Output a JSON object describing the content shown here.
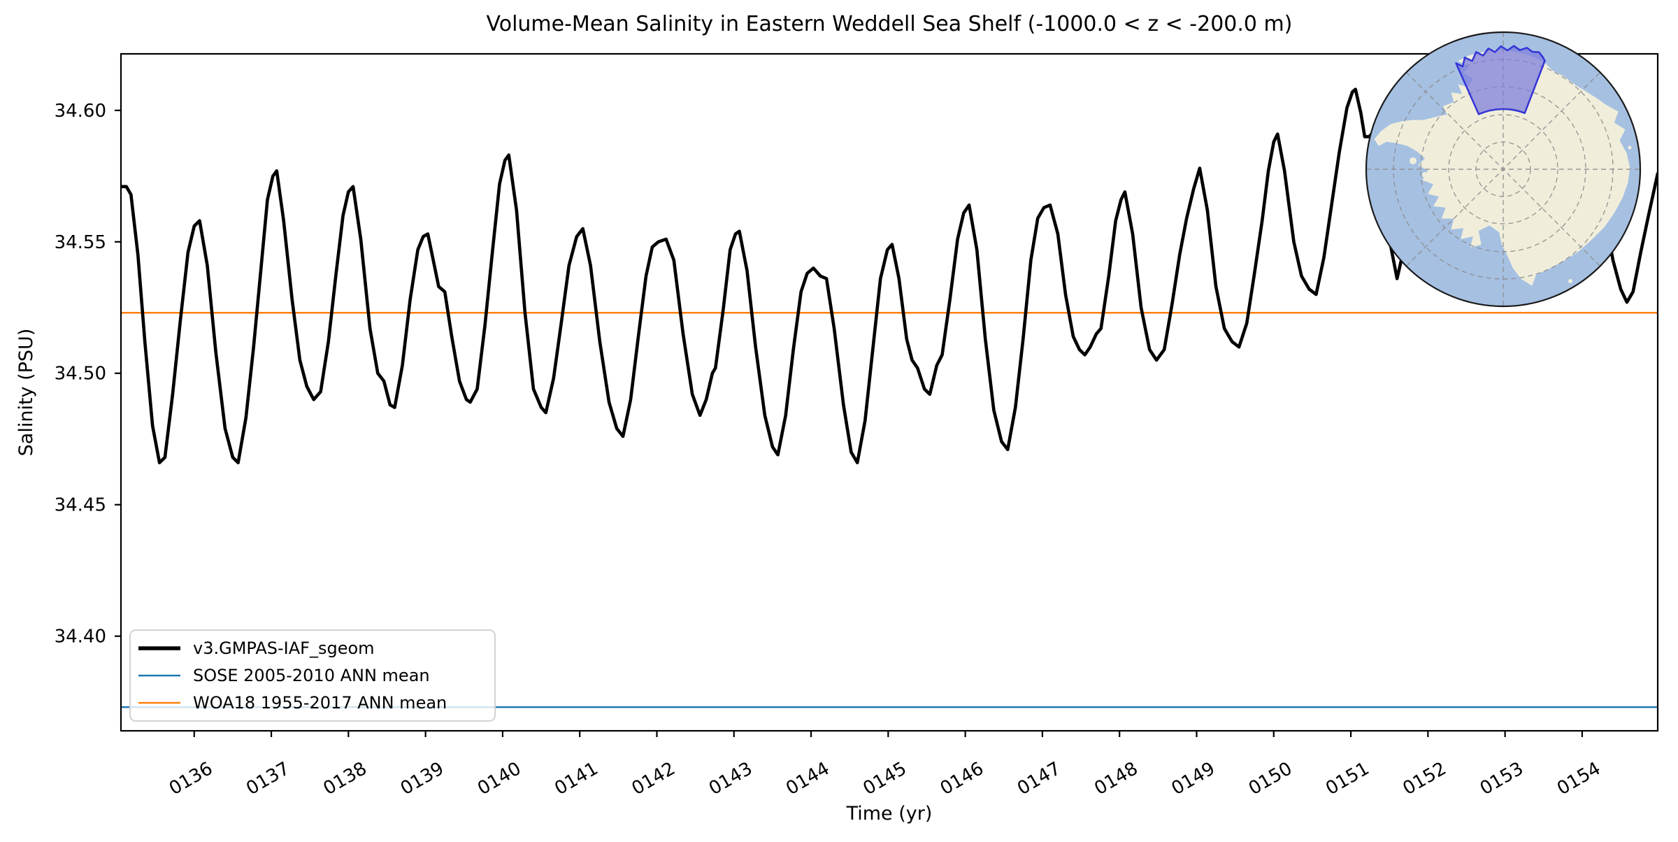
{
  "figure": {
    "title": "Volume-Mean Salinity in Eastern Weddell Sea Shelf (-1000.0 < z < -200.0 m)"
  },
  "chart_data": {
    "type": "line",
    "title": "Volume-Mean Salinity in Eastern Weddell Sea Shelf (-1000.0 < z < -200.0 m)",
    "xlabel": "Time (yr)",
    "ylabel": "Salinity (PSU)",
    "xlim": [
      135.05,
      154.98
    ],
    "ylim": [
      34.364,
      34.6215
    ],
    "grid": false,
    "xticks": {
      "values": [
        136,
        137,
        138,
        139,
        140,
        141,
        142,
        143,
        144,
        145,
        146,
        147,
        148,
        149,
        150,
        151,
        152,
        153,
        154
      ],
      "labels": [
        "0136",
        "0137",
        "0138",
        "0139",
        "0140",
        "0141",
        "0142",
        "0143",
        "0144",
        "0145",
        "0146",
        "0147",
        "0148",
        "0149",
        "0150",
        "0151",
        "0152",
        "0153",
        "0154"
      ],
      "rotation_deg": -30
    },
    "yticks": {
      "values": [
        34.4,
        34.45,
        34.5,
        34.55,
        34.6
      ],
      "labels": [
        "34.40",
        "34.45",
        "34.50",
        "34.55",
        "34.60"
      ]
    },
    "series": [
      {
        "name": "v3.GMPAS-IAF_sgeom",
        "type": "line",
        "color": "#000000",
        "linewidth": 4.6,
        "points": [
          [
            135.05,
            34.571
          ],
          [
            135.12,
            34.571
          ],
          [
            135.18,
            34.568
          ],
          [
            135.27,
            34.545
          ],
          [
            135.36,
            34.512
          ],
          [
            135.46,
            34.48
          ],
          [
            135.55,
            34.466
          ],
          [
            135.62,
            34.468
          ],
          [
            135.72,
            34.492
          ],
          [
            135.82,
            34.52
          ],
          [
            135.92,
            34.546
          ],
          [
            136.0,
            34.556
          ],
          [
            136.07,
            34.558
          ],
          [
            136.17,
            34.541
          ],
          [
            136.28,
            34.508
          ],
          [
            136.4,
            34.479
          ],
          [
            136.5,
            34.468
          ],
          [
            136.57,
            34.466
          ],
          [
            136.67,
            34.483
          ],
          [
            136.77,
            34.51
          ],
          [
            136.87,
            34.541
          ],
          [
            136.95,
            34.566
          ],
          [
            137.02,
            34.575
          ],
          [
            137.07,
            34.577
          ],
          [
            137.16,
            34.558
          ],
          [
            137.27,
            34.528
          ],
          [
            137.37,
            34.505
          ],
          [
            137.46,
            34.495
          ],
          [
            137.55,
            34.49
          ],
          [
            137.64,
            34.493
          ],
          [
            137.74,
            34.512
          ],
          [
            137.84,
            34.538
          ],
          [
            137.93,
            34.56
          ],
          [
            138.0,
            34.569
          ],
          [
            138.06,
            34.571
          ],
          [
            138.16,
            34.551
          ],
          [
            138.28,
            34.517
          ],
          [
            138.38,
            34.5
          ],
          [
            138.46,
            34.497
          ],
          [
            138.54,
            34.488
          ],
          [
            138.6,
            34.487
          ],
          [
            138.7,
            34.503
          ],
          [
            138.8,
            34.528
          ],
          [
            138.9,
            34.547
          ],
          [
            138.97,
            34.552
          ],
          [
            139.03,
            34.553
          ],
          [
            139.1,
            34.543
          ],
          [
            139.17,
            34.533
          ],
          [
            139.25,
            34.531
          ],
          [
            139.34,
            34.514
          ],
          [
            139.44,
            34.497
          ],
          [
            139.53,
            34.49
          ],
          [
            139.58,
            34.489
          ],
          [
            139.67,
            34.494
          ],
          [
            139.77,
            34.518
          ],
          [
            139.87,
            34.547
          ],
          [
            139.96,
            34.572
          ],
          [
            140.03,
            34.581
          ],
          [
            140.08,
            34.583
          ],
          [
            140.18,
            34.562
          ],
          [
            140.29,
            34.523
          ],
          [
            140.4,
            34.494
          ],
          [
            140.5,
            34.487
          ],
          [
            140.56,
            34.485
          ],
          [
            140.66,
            34.498
          ],
          [
            140.76,
            34.519
          ],
          [
            140.86,
            34.541
          ],
          [
            140.96,
            34.552
          ],
          [
            141.04,
            34.555
          ],
          [
            141.14,
            34.541
          ],
          [
            141.26,
            34.512
          ],
          [
            141.38,
            34.489
          ],
          [
            141.48,
            34.479
          ],
          [
            141.56,
            34.476
          ],
          [
            141.66,
            34.49
          ],
          [
            141.76,
            34.514
          ],
          [
            141.86,
            34.537
          ],
          [
            141.94,
            34.548
          ],
          [
            142.02,
            34.55
          ],
          [
            142.12,
            34.551
          ],
          [
            142.22,
            34.543
          ],
          [
            142.34,
            34.515
          ],
          [
            142.46,
            34.492
          ],
          [
            142.56,
            34.484
          ],
          [
            142.64,
            34.49
          ],
          [
            142.72,
            34.5
          ],
          [
            142.76,
            34.502
          ],
          [
            142.86,
            34.524
          ],
          [
            142.95,
            34.547
          ],
          [
            143.02,
            34.553
          ],
          [
            143.07,
            34.554
          ],
          [
            143.17,
            34.539
          ],
          [
            143.28,
            34.51
          ],
          [
            143.4,
            34.484
          ],
          [
            143.5,
            34.472
          ],
          [
            143.57,
            34.469
          ],
          [
            143.67,
            34.484
          ],
          [
            143.77,
            34.509
          ],
          [
            143.87,
            34.531
          ],
          [
            143.95,
            34.538
          ],
          [
            144.03,
            34.54
          ],
          [
            144.12,
            34.537
          ],
          [
            144.2,
            34.536
          ],
          [
            144.3,
            34.517
          ],
          [
            144.42,
            34.488
          ],
          [
            144.52,
            34.47
          ],
          [
            144.6,
            34.466
          ],
          [
            144.7,
            34.482
          ],
          [
            144.8,
            34.509
          ],
          [
            144.9,
            34.536
          ],
          [
            144.99,
            34.547
          ],
          [
            145.05,
            34.549
          ],
          [
            145.14,
            34.536
          ],
          [
            145.24,
            34.513
          ],
          [
            145.31,
            34.505
          ],
          [
            145.38,
            34.502
          ],
          [
            145.47,
            34.494
          ],
          [
            145.54,
            34.492
          ],
          [
            145.63,
            34.503
          ],
          [
            145.7,
            34.507
          ],
          [
            145.8,
            34.528
          ],
          [
            145.9,
            34.551
          ],
          [
            145.98,
            34.561
          ],
          [
            146.05,
            34.564
          ],
          [
            146.15,
            34.547
          ],
          [
            146.26,
            34.513
          ],
          [
            146.37,
            34.486
          ],
          [
            146.47,
            34.474
          ],
          [
            146.55,
            34.471
          ],
          [
            146.65,
            34.487
          ],
          [
            146.75,
            34.513
          ],
          [
            146.85,
            34.543
          ],
          [
            146.94,
            34.559
          ],
          [
            147.02,
            34.563
          ],
          [
            147.1,
            34.564
          ],
          [
            147.2,
            34.553
          ],
          [
            147.3,
            34.53
          ],
          [
            147.4,
            34.514
          ],
          [
            147.48,
            34.509
          ],
          [
            147.55,
            34.507
          ],
          [
            147.62,
            34.51
          ],
          [
            147.7,
            34.515
          ],
          [
            147.76,
            34.517
          ],
          [
            147.86,
            34.537
          ],
          [
            147.95,
            34.558
          ],
          [
            148.02,
            34.566
          ],
          [
            148.07,
            34.569
          ],
          [
            148.17,
            34.553
          ],
          [
            148.28,
            34.525
          ],
          [
            148.39,
            34.509
          ],
          [
            148.48,
            34.505
          ],
          [
            148.58,
            34.509
          ],
          [
            148.68,
            34.526
          ],
          [
            148.78,
            34.545
          ],
          [
            148.87,
            34.559
          ],
          [
            148.96,
            34.57
          ],
          [
            149.04,
            34.578
          ],
          [
            149.14,
            34.562
          ],
          [
            149.25,
            34.533
          ],
          [
            149.36,
            34.517
          ],
          [
            149.46,
            34.512
          ],
          [
            149.55,
            34.51
          ],
          [
            149.65,
            34.519
          ],
          [
            149.75,
            34.538
          ],
          [
            149.85,
            34.558
          ],
          [
            149.93,
            34.577
          ],
          [
            150.0,
            34.588
          ],
          [
            150.05,
            34.591
          ],
          [
            150.14,
            34.577
          ],
          [
            150.26,
            34.55
          ],
          [
            150.36,
            34.537
          ],
          [
            150.46,
            34.532
          ],
          [
            150.55,
            34.53
          ],
          [
            150.65,
            34.544
          ],
          [
            150.75,
            34.564
          ],
          [
            150.85,
            34.584
          ],
          [
            150.95,
            34.601
          ],
          [
            151.02,
            34.607
          ],
          [
            151.06,
            34.608
          ],
          [
            151.13,
            34.599
          ],
          [
            151.18,
            34.59
          ],
          [
            151.24,
            34.59
          ],
          [
            151.32,
            34.593
          ],
          [
            151.42,
            34.57
          ],
          [
            151.52,
            34.548
          ],
          [
            151.6,
            34.536
          ],
          [
            151.7,
            34.549
          ],
          [
            151.82,
            34.574
          ],
          [
            151.94,
            34.598
          ],
          [
            152.04,
            34.611
          ],
          [
            152.16,
            34.588
          ],
          [
            152.3,
            34.554
          ],
          [
            152.45,
            34.538
          ],
          [
            152.56,
            34.536
          ],
          [
            152.68,
            34.553
          ],
          [
            152.82,
            34.579
          ],
          [
            152.95,
            34.603
          ],
          [
            153.04,
            34.615
          ],
          [
            153.16,
            34.592
          ],
          [
            153.3,
            34.56
          ],
          [
            153.45,
            34.542
          ],
          [
            153.56,
            34.54
          ],
          [
            153.68,
            34.556
          ],
          [
            153.82,
            34.58
          ],
          [
            153.95,
            34.604
          ],
          [
            154.04,
            34.613
          ],
          [
            154.16,
            34.589
          ],
          [
            154.28,
            34.562
          ],
          [
            154.4,
            34.543
          ],
          [
            154.5,
            34.532
          ],
          [
            154.58,
            34.527
          ],
          [
            154.66,
            34.531
          ],
          [
            154.76,
            34.546
          ],
          [
            154.86,
            34.56
          ],
          [
            154.98,
            34.576
          ]
        ]
      },
      {
        "name": "SOSE 2005-2010 ANN mean",
        "type": "hline",
        "color": "#1f77b4",
        "linewidth": 2.5,
        "value": 34.373
      },
      {
        "name": "WOA18 1955-2017 ANN mean",
        "type": "hline",
        "color": "#ff7f0e",
        "linewidth": 2.5,
        "value": 34.523
      }
    ],
    "legend": {
      "position": "lower left"
    }
  },
  "inset_map": {
    "description": "South polar view of Antarctica with Eastern Weddell Sea Shelf region highlighted",
    "ocean_color": "#a6c0e2",
    "land_color": "#f0eedb",
    "graticule_color": "#8a8a8a",
    "region_fill": "#7b7bdd",
    "region_border": "#3434d6",
    "outline_color": "#1a1a1a"
  }
}
